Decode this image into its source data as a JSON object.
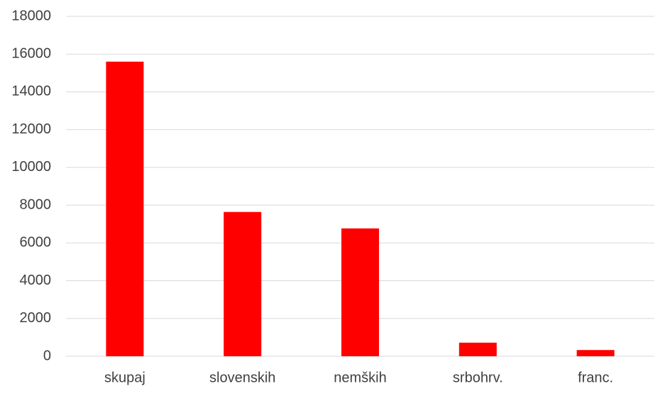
{
  "chart_data": {
    "type": "bar",
    "categories": [
      "skupaj",
      "slovenskih",
      "nemških",
      "srbohrv.",
      "franc."
    ],
    "values": [
      15600,
      7640,
      6770,
      720,
      330
    ],
    "color": "#ff0000",
    "ylim": [
      0,
      18000
    ],
    "yticks": [
      0,
      2000,
      4000,
      6000,
      8000,
      10000,
      12000,
      14000,
      16000,
      18000
    ],
    "grid": true
  }
}
